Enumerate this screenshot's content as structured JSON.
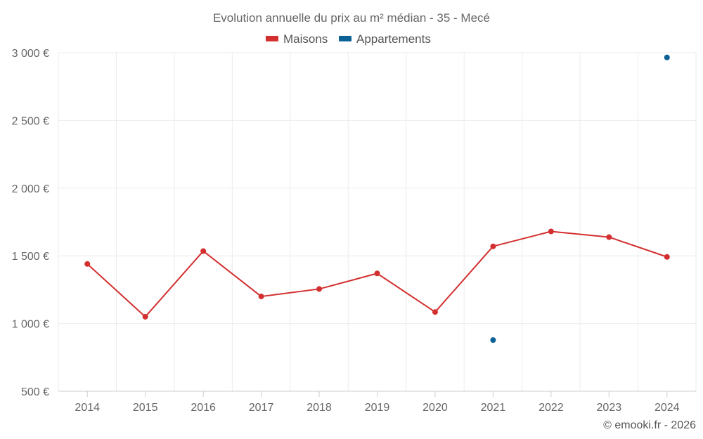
{
  "chart_data": {
    "type": "line",
    "title": "Evolution annuelle du prix au m² médian - 35 - Mecé",
    "categories": [
      "2014",
      "2015",
      "2016",
      "2017",
      "2018",
      "2019",
      "2020",
      "2021",
      "2022",
      "2023",
      "2024"
    ],
    "series": [
      {
        "name": "Maisons",
        "color": "#d32f2f",
        "values": [
          1440,
          1050,
          1535,
          1200,
          1255,
          1370,
          1085,
          1570,
          1680,
          1638,
          1492
        ]
      },
      {
        "name": "Appartements",
        "color": "#0b6096",
        "values": [
          null,
          null,
          null,
          null,
          null,
          null,
          null,
          878,
          null,
          null,
          2965
        ]
      }
    ],
    "yticks": [
      500,
      1000,
      1500,
      2000,
      2500,
      3000
    ],
    "ytick_labels": [
      "500 €",
      "1 000 €",
      "1 500 €",
      "2 000 €",
      "2 500 €",
      "3 000 €"
    ],
    "ylim": [
      500,
      3000
    ],
    "xlabel": "",
    "ylabel": "",
    "legend_position": "top-center",
    "grid": true
  },
  "credit": "© emooki.fr - 2026"
}
